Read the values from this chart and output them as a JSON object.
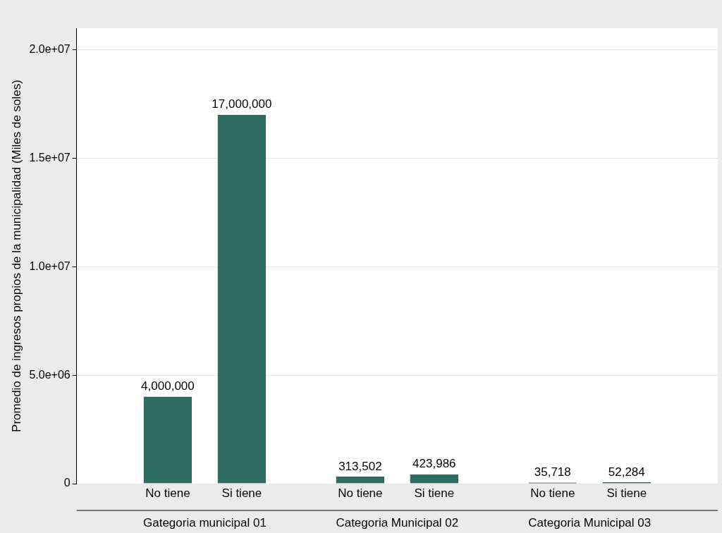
{
  "chart_data": {
    "type": "bar",
    "ylabel": "Promedio de ingresos propios de la municipalidad (Miles de soles)",
    "categories": [
      "No tiene",
      "Si tiene",
      "No tiene",
      "Si tiene",
      "No tiene",
      "Si tiene"
    ],
    "values": [
      4000000,
      17000000,
      313502,
      423986,
      35718,
      52284
    ],
    "value_labels": [
      "4,000,000",
      "17,000,000",
      "313,502",
      "423,986",
      "35,718",
      "52,284"
    ],
    "color": "#2e6b60",
    "annotations": [
      "Gategoria municipal 01",
      "Categoria Municipal 02",
      "Categoria Municipal 03"
    ],
    "ylim": [
      0,
      21000000
    ],
    "yticks": [
      {
        "value": 0,
        "label": "0"
      },
      {
        "value": 5000000,
        "label": "5.0e+06"
      },
      {
        "value": 10000000,
        "label": "1.0e+07"
      },
      {
        "value": 15000000,
        "label": "1.5e+07"
      },
      {
        "value": 20000000,
        "label": "2.0e+07"
      }
    ],
    "grid": "y",
    "legend": false
  }
}
